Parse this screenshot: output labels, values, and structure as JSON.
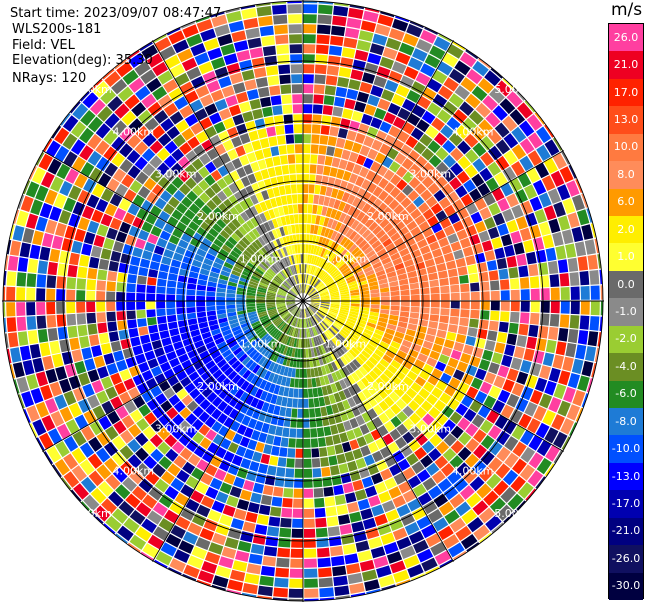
{
  "header": {
    "start_time": "Start time: 2023/09/07 08:47:47",
    "site": "WLS200s-181",
    "field": "Field: VEL",
    "elevation": "Elevation(deg): 35.30",
    "nrays": "NRays: 120"
  },
  "colorbar": {
    "unit": "m/s",
    "labels": [
      "26.0",
      "21.0",
      "17.0",
      "13.0",
      "10.0",
      "8.0",
      "6.0",
      "2.0",
      "1.0",
      "0.0",
      "-1.0",
      "-2.0",
      "-4.0",
      "-6.0",
      "-8.0",
      "-10.0",
      "-13.0",
      "-17.0",
      "-21.0",
      "-26.0",
      "-30.0"
    ],
    "colors": [
      "#ff3fa0",
      "#ee0022",
      "#ff2200",
      "#ff4d1a",
      "#ff7a40",
      "#ff8c5a",
      "#ff9a00",
      "#ffee00",
      "#ffff30",
      "#6a6a6a",
      "#8a8a8a",
      "#9acd32",
      "#6b8e23",
      "#228b22",
      "#1e7bd6",
      "#0050ff",
      "#0000ff",
      "#0000b0",
      "#000080",
      "#101060",
      "#000040"
    ]
  },
  "chart_data": {
    "type": "heatmap",
    "projection": "polar PPI",
    "field": "VEL",
    "unit": "m/s",
    "range_rings_km": [
      1.0,
      2.0,
      3.0,
      4.0,
      5.0
    ],
    "ring_labels": [
      "1.00km",
      "2.00km",
      "3.00km",
      "4.00km",
      "5.00km"
    ],
    "n_rays": 120,
    "value_range": [
      -30,
      26
    ],
    "pattern": "receding (positive) velocities to the north-east, approaching (negative) to the south-west; noisy beyond ~3 km"
  }
}
